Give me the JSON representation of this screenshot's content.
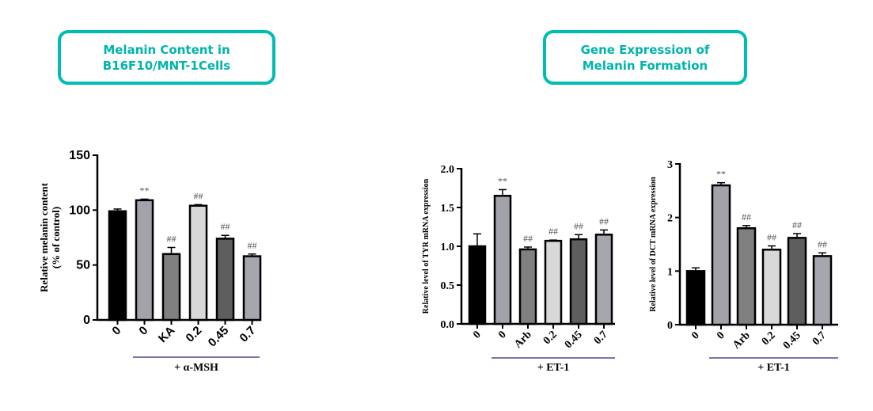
{
  "panels": [
    {
      "title_lines": [
        "Melanin Content in",
        "B16F10/MNT-1Cells"
      ]
    },
    {
      "title_lines": [
        "Gene Expression of",
        "Melanin Formation"
      ]
    }
  ],
  "colors": {
    "accent": "#00bdb2",
    "group_line": "#4a4a8a"
  },
  "chart_data": [
    {
      "type": "bar",
      "ylabel": [
        "Relative melanin content",
        "(% of control)"
      ],
      "ylim": [
        0,
        150
      ],
      "yticks": [
        "0",
        "50",
        "100",
        "150"
      ],
      "ytick_values": [
        0,
        50,
        100,
        150
      ],
      "categories": [
        "0",
        "0",
        "KA",
        "0.2",
        "0.45",
        "0.7"
      ],
      "values": [
        99,
        109,
        60,
        104,
        74,
        58
      ],
      "errors": [
        2,
        1,
        6,
        1,
        3,
        2
      ],
      "annotations": [
        "",
        "**",
        "##",
        "##",
        "##",
        "##"
      ],
      "fills": [
        "#000000",
        "#a2a2aa",
        "#808080",
        "#d8d8d8",
        "#5e5e5e",
        "#a6a6ae"
      ],
      "group_label": "+ α-MSH",
      "group_start": 1
    },
    {
      "type": "bar",
      "ylabel": [
        "Relative level of TYR mRNA expression"
      ],
      "ylim": [
        0,
        2.0
      ],
      "yticks": [
        "0.0",
        "0.5",
        "1.0",
        "1.5",
        "2.0"
      ],
      "ytick_values": [
        0,
        0.5,
        1.0,
        1.5,
        2.0
      ],
      "categories": [
        "0",
        "0",
        "Arb",
        "0.2",
        "0.45",
        "0.7"
      ],
      "values": [
        1.0,
        1.65,
        0.96,
        1.07,
        1.09,
        1.15
      ],
      "errors": [
        0.16,
        0.08,
        0.03,
        0.01,
        0.06,
        0.06
      ],
      "annotations": [
        "",
        "**",
        "##",
        "##",
        "##",
        "##"
      ],
      "fills": [
        "#000000",
        "#a2a2aa",
        "#808080",
        "#d8d8d8",
        "#5e5e5e",
        "#a6a6ae"
      ],
      "group_label": "+ ET-1",
      "group_start": 1
    },
    {
      "type": "bar",
      "ylabel": [
        "Relative level of DCT mRNA expression"
      ],
      "ylim": [
        0,
        3
      ],
      "yticks": [
        "0",
        "1",
        "2",
        "3"
      ],
      "ytick_values": [
        0,
        1,
        2,
        3
      ],
      "categories": [
        "0",
        "0",
        "Arb",
        "0.2",
        "0.45",
        "0.7"
      ],
      "values": [
        1.0,
        2.6,
        1.8,
        1.4,
        1.62,
        1.28
      ],
      "errors": [
        0.06,
        0.05,
        0.05,
        0.07,
        0.08,
        0.06
      ],
      "annotations": [
        "",
        "**",
        "##",
        "##",
        "##",
        "##"
      ],
      "fills": [
        "#000000",
        "#a2a2aa",
        "#808080",
        "#d8d8d8",
        "#5e5e5e",
        "#a6a6ae"
      ],
      "group_label": "+ ET-1",
      "group_start": 1
    }
  ]
}
